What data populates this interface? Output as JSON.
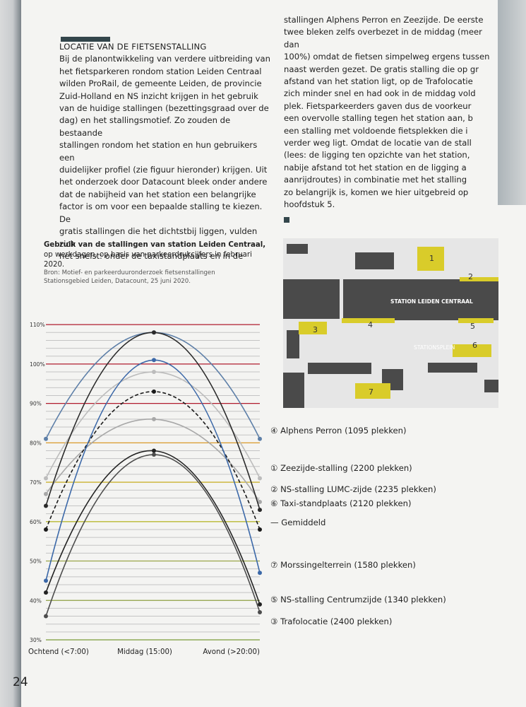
{
  "page": {
    "number": "24",
    "left_column": {
      "heading": "LOCATIE VAN DE FIETSENSTALLING",
      "lines": [
        "Bij de planontwikkeling van verdere uitbreiding van",
        "het fietsparkeren rondom station Leiden Centraal",
        "wilden ProRail, de gemeente Leiden, de provincie",
        "Zuid-Holland en NS inzicht krijgen in het gebruik",
        "van de huidige stallingen (bezettingsgraad over de",
        "dag) en het stallingsmotief. Zo zouden de bestaande",
        "stallingen rondom het station en hun gebruikers een",
        "duidelijker profiel (zie figuur hieronder) krijgen. Uit",
        "het onderzoek door Datacount bleek onder andere",
        "dat de nabijheid van het station een belangrijke",
        "factor is om voor een bepaalde stalling te kiezen. De",
        "gratis stallingen die het dichtstbij liggen, vulden zich",
        "het snelst: onder de taxistandplaats en in de"
      ]
    },
    "right_column": {
      "lines": [
        "stallingen Alphens Perron en Zeezijde. De eerste",
        "twee bleken zelfs overbezet in de middag (meer dan",
        "100%) omdat de fietsen simpelweg ergens tussen",
        "naast werden gezet. De gratis stalling die op gr",
        "afstand van het station ligt, op de Trafolocatie",
        "zich minder snel en had ook in de middag vold",
        "plek. Fietsparkeerders gaven dus de voorkeur",
        "een overvolle stalling tegen het station aan, b",
        "een stalling met voldoende fietsplekken die i",
        "verder weg ligt. Omdat de locatie van de stall",
        "(lees: de ligging ten opzichte van het station,",
        "nabije afstand tot het station en de ligging a",
        "aanrijdroutes) in combinatie met het stalling",
        "zo belangrijk is, komen we hier uitgebreid op",
        "hoofdstuk 5."
      ]
    },
    "chart_heading": {
      "title": "Gebruik van de stallingen van station Leiden Centraal,",
      "subtitle": "op werkdagen, op basis van parkeerdrukcijfers in februari 2020.",
      "source_line1": "Bron: Motief- en parkeerduuronderzoek fietsenstallingen",
      "source_line2": "Stationsgebied Leiden, Datacount, 25 juni 2020."
    },
    "map": {
      "station_label": "STATION LEIDEN CENTRAAL",
      "square_label": "STATIONSPLEIN",
      "markers": [
        "1",
        "2",
        "3",
        "4",
        "5",
        "6",
        "7"
      ],
      "colors": {
        "background": "#e6e6e6",
        "building": "#4a4a4a",
        "parking": "#d9cc2a"
      }
    }
  },
  "chart_data": {
    "type": "line",
    "categories": [
      "Ochtend (<7:00)",
      "Middag (15:00)",
      "Avond (>20:00)"
    ],
    "ylim": [
      30,
      112
    ],
    "yticks": [
      30,
      40,
      50,
      60,
      70,
      80,
      90,
      100,
      110
    ],
    "ytick_labels": [
      "30%",
      "40%",
      "50%",
      "60%",
      "70%",
      "80%",
      "90%",
      "100%",
      "110%"
    ],
    "grid": true,
    "legend_position": "right",
    "series": [
      {
        "name": "Alphens Perron (1095 plekken)",
        "marker": "④",
        "values": [
          81,
          108,
          81
        ],
        "color": "#5d7fa8",
        "dashed": false
      },
      {
        "name": "Zeezijde-stalling (2200 plekken)",
        "marker": "①",
        "values": [
          71,
          98,
          71
        ],
        "color": "#bcbcbc",
        "dashed": false
      },
      {
        "name": "NS-stalling LUMC-zijde (2235 plekken)",
        "marker": "②",
        "values": [
          67,
          86,
          65
        ],
        "color": "#a8a8a8",
        "dashed": false
      },
      {
        "name": "Taxi-standplaats (2120 plekken)",
        "marker": "⑥",
        "values": [
          64,
          108,
          63
        ],
        "color": "#2a2a2a",
        "dashed": false
      },
      {
        "name": "Gemiddeld",
        "marker": "—",
        "values": [
          58,
          93,
          58
        ],
        "color": "#1a1a1a",
        "dashed": true
      },
      {
        "name": "Morssingelterrein (1580 plekken)",
        "marker": "⑦",
        "values": [
          45,
          101,
          47
        ],
        "color": "#3b68a8",
        "dashed": false
      },
      {
        "name": "NS-stalling Centrumzijde (1340 plekken)",
        "marker": "⑤",
        "values": [
          42,
          78,
          39
        ],
        "color": "#222222",
        "dashed": false
      },
      {
        "name": "Trafolocatie (2400 plekken)",
        "marker": "③",
        "values": [
          36,
          77,
          37
        ],
        "color": "#4d4d4d",
        "dashed": false
      }
    ],
    "reference_lines": [
      {
        "value": 110,
        "color": "#b01c2e"
      },
      {
        "value": 100,
        "color": "#b01c2e"
      },
      {
        "value": 90,
        "color": "#b01c2e"
      },
      {
        "value": 80,
        "color": "#d99a2a"
      },
      {
        "value": 70,
        "color": "#c9b230"
      },
      {
        "value": 60,
        "color": "#b9b832"
      },
      {
        "value": 50,
        "color": "#9aa64a"
      },
      {
        "value": 40,
        "color": "#8fa042"
      },
      {
        "value": 30,
        "color": "#7a9a3a"
      }
    ]
  }
}
